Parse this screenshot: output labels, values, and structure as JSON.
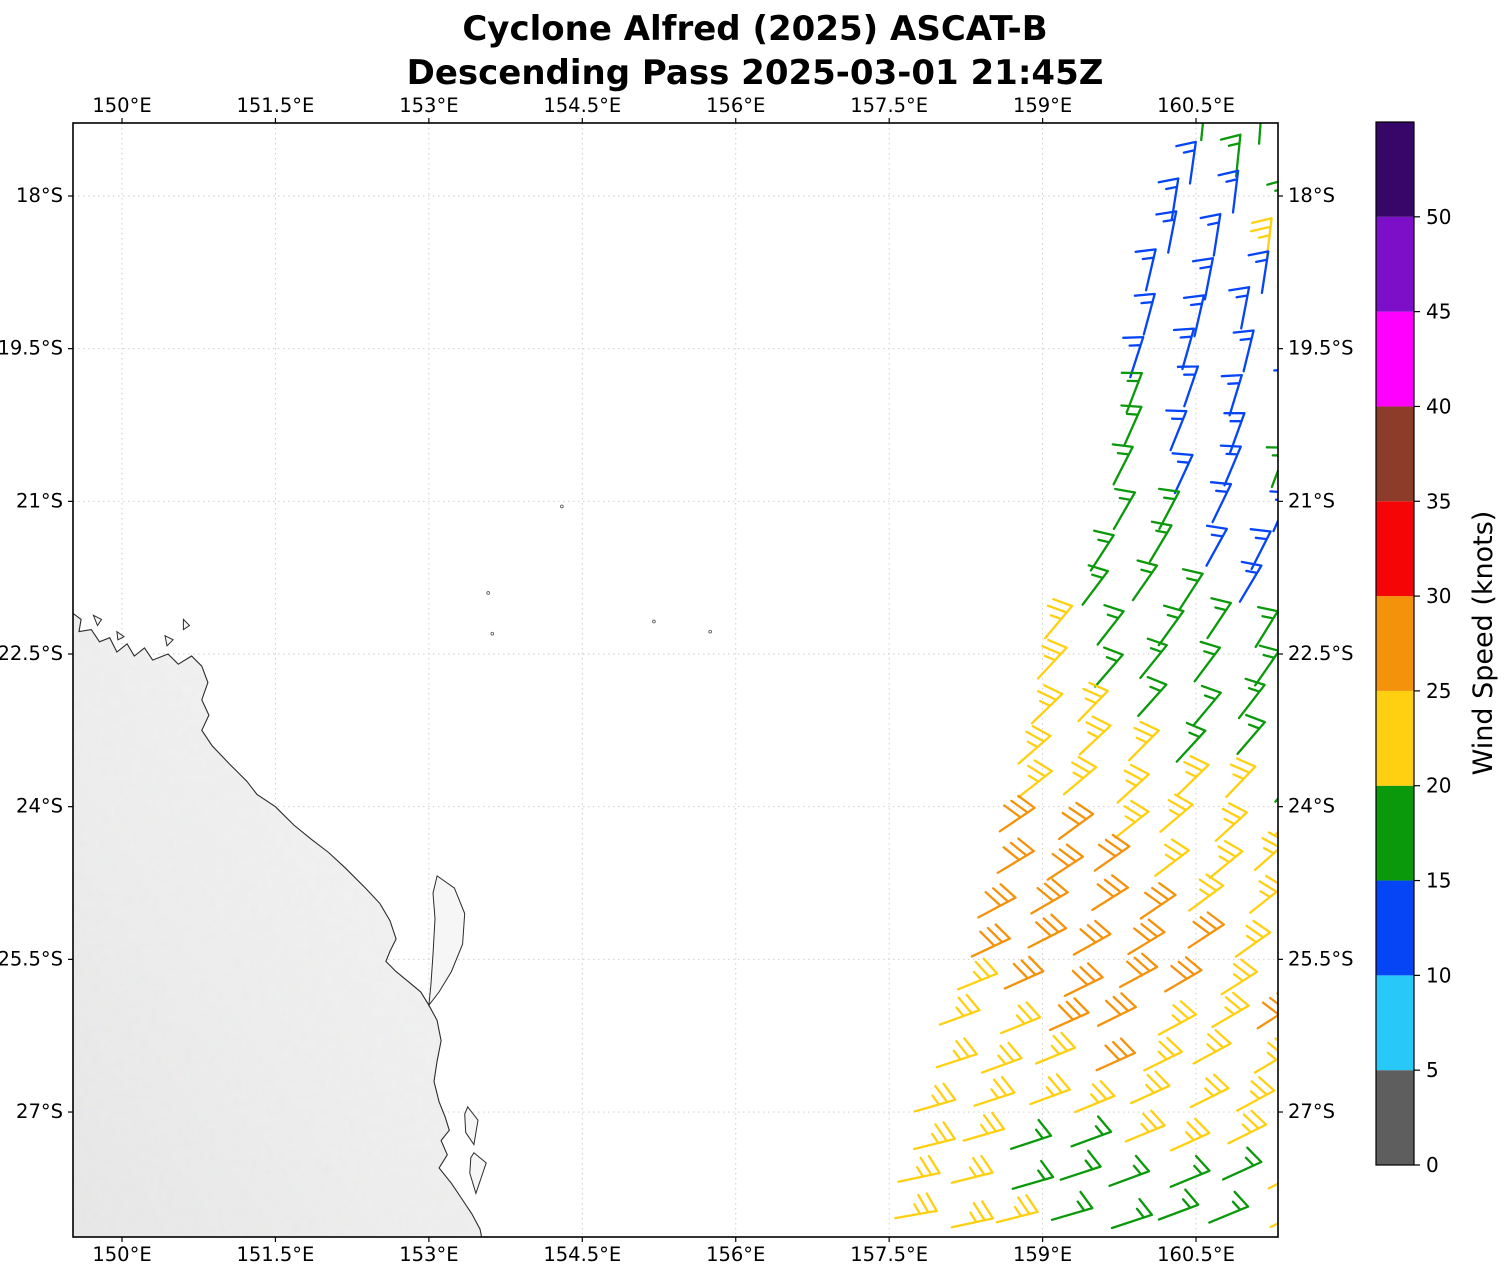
{
  "figure": {
    "title_line1": "Cyclone Alfred (2025) ASCAT-B",
    "title_line2": "Descending Pass 2025-03-01 21:45Z"
  },
  "chart_data": {
    "type": "wind-barb-map",
    "title": "Cyclone Alfred (2025) ASCAT-B — Descending Pass 2025-03-01 21:45Z",
    "storm_name": "Cyclone Alfred",
    "season": "2025",
    "satellite": "ASCAT-B",
    "pass_type": "Descending Pass",
    "datetime": "2025-03-01 21:45Z",
    "grid": "dotted",
    "x_axis": {
      "tick_labels": [
        "150°E",
        "151.5°E",
        "153°E",
        "154.5°E",
        "156°E",
        "157.5°E",
        "159°E",
        "160.5°E"
      ],
      "tick_lons": [
        150,
        151.5,
        153,
        154.5,
        156,
        157.5,
        159,
        160.5
      ],
      "lon_range": [
        149.52,
        161.3
      ]
    },
    "y_axis": {
      "tick_labels": [
        "18°S",
        "19.5°S",
        "21°S",
        "22.5°S",
        "24°S",
        "25.5°S",
        "27°S"
      ],
      "tick_lats": [
        -18,
        -19.5,
        -21,
        -22.5,
        -24,
        -25.5,
        -27
      ],
      "lat_range": [
        -28.23,
        -17.28
      ]
    },
    "colorbar": {
      "label": "Wind Speed (knots)",
      "tick_values": [
        0,
        5,
        10,
        15,
        20,
        25,
        30,
        35,
        40,
        45,
        50
      ],
      "max_value": 55,
      "levels": [
        {
          "from": 0,
          "to": 5,
          "color": "#5e5e5e"
        },
        {
          "from": 5,
          "to": 10,
          "color": "#28c8f8"
        },
        {
          "from": 10,
          "to": 15,
          "color": "#0545f5"
        },
        {
          "from": 15,
          "to": 20,
          "color": "#0a990a"
        },
        {
          "from": 20,
          "to": 25,
          "color": "#ffd012"
        },
        {
          "from": 25,
          "to": 30,
          "color": "#f5920b"
        },
        {
          "from": 30,
          "to": 35,
          "color": "#f50505"
        },
        {
          "from": 35,
          "to": 40,
          "color": "#8e3c2a"
        },
        {
          "from": 40,
          "to": 45,
          "color": "#ff00ff"
        },
        {
          "from": 45,
          "to": 50,
          "color": "#7e0fc8"
        },
        {
          "from": 50,
          "to": 55,
          "color": "#360668"
        }
      ]
    },
    "wind_barbs": {
      "description": "Satellite swath of 10-m wind barbs east of the Queensland coast; staff angle in deg CCW from east points toward feather end; barbs flipped for Southern Hemisphere.",
      "class_speeds_knots": {
        "b": 13,
        "g": 17,
        "y": 23,
        "o": 28
      },
      "dlon": 0.52,
      "twist_deg_per_lon": 4,
      "rows": [
        {
          "lat": -17.45,
          "lon0": 160.55,
          "speeds": "ggg",
          "staff_deg": 84
        },
        {
          "lat": -17.83,
          "lon0": 160.42,
          "speeds": "bggg",
          "staff_deg": 82
        },
        {
          "lat": -18.21,
          "lon0": 160.3,
          "speeds": "bbgg",
          "staff_deg": 81
        },
        {
          "lat": -18.59,
          "lon0": 160.18,
          "speeds": "bbyg",
          "staff_deg": 79
        },
        {
          "lat": -18.97,
          "lon0": 160.06,
          "speeds": "bbbg",
          "staff_deg": 77
        },
        {
          "lat": -19.35,
          "lon0": 159.95,
          "speeds": "bbbg",
          "staff_deg": 75
        },
        {
          "lat": -19.73,
          "lon0": 159.88,
          "speeds": "bbbgg",
          "staff_deg": 72
        },
        {
          "lat": -20.11,
          "lon0": 159.82,
          "speeds": "gbbbg",
          "staff_deg": 69
        },
        {
          "lat": -20.49,
          "lon0": 159.78,
          "speeds": "gbbbg",
          "staff_deg": 66
        },
        {
          "lat": -20.87,
          "lon0": 159.73,
          "speeds": "gbbgg",
          "staff_deg": 63
        },
        {
          "lat": -21.25,
          "lon0": 159.65,
          "speeds": "ggbbgg",
          "staff_deg": 60
        },
        {
          "lat": -21.63,
          "lon0": 159.52,
          "speeds": "ggbbgg",
          "staff_deg": 57
        },
        {
          "lat": -22.01,
          "lon0": 159.35,
          "speeds": "gggbgg",
          "staff_deg": 53
        },
        {
          "lat": -22.39,
          "lon0": 159.05,
          "speeds": "ygggggg",
          "staff_deg": 50
        },
        {
          "lat": -22.77,
          "lon0": 158.95,
          "speeds": "ygggggg",
          "staff_deg": 47
        },
        {
          "lat": -23.15,
          "lon0": 158.88,
          "speeds": "yygggggg",
          "staff_deg": 44
        },
        {
          "lat": -23.53,
          "lon0": 158.8,
          "speeds": "yyyggggg",
          "staff_deg": 41
        },
        {
          "lat": -23.91,
          "lon0": 158.72,
          "speeds": "yyyyyggg",
          "staff_deg": 38
        },
        {
          "lat": -24.29,
          "lon0": 158.63,
          "speeds": "ooyyyyyy",
          "staff_deg": 34
        },
        {
          "lat": -24.67,
          "lon0": 158.52,
          "speeds": "oooyyyyy",
          "staff_deg": 31
        },
        {
          "lat": -25.05,
          "lon0": 158.4,
          "speeds": "ooooyyyy",
          "staff_deg": 28
        },
        {
          "lat": -25.43,
          "lon0": 158.3,
          "speeds": "oooooyyy",
          "staff_deg": 25
        },
        {
          "lat": -25.81,
          "lon0": 158.16,
          "speeds": "yooooyyy",
          "staff_deg": 22
        },
        {
          "lat": -26.19,
          "lon0": 158.03,
          "speeds": "yyooyyoy",
          "staff_deg": 20
        },
        {
          "lat": -26.57,
          "lon0": 157.92,
          "speeds": "yyyoyyyy",
          "staff_deg": 18
        },
        {
          "lat": -26.95,
          "lon0": 157.8,
          "speeds": "yyyyyyyy",
          "staff_deg": 16
        },
        {
          "lat": -27.33,
          "lon0": 157.7,
          "speeds": "yyggyyyy",
          "staff_deg": 14
        },
        {
          "lat": -27.71,
          "lon0": 157.62,
          "speeds": "yygggggy",
          "staff_deg": 12
        },
        {
          "lat": -28.09,
          "lon0": 157.55,
          "speeds": "yyyggggy",
          "staff_deg": 10
        }
      ]
    },
    "geography": {
      "region": "Queensland, Australia coast and Coral Sea",
      "mainland_coast": [
        [
          149.52,
          -22.1
        ],
        [
          149.6,
          -22.16
        ],
        [
          149.58,
          -22.28
        ],
        [
          149.7,
          -22.26
        ],
        [
          149.78,
          -22.38
        ],
        [
          149.88,
          -22.34
        ],
        [
          149.95,
          -22.48
        ],
        [
          150.05,
          -22.4
        ],
        [
          150.12,
          -22.52
        ],
        [
          150.22,
          -22.44
        ],
        [
          150.3,
          -22.56
        ],
        [
          150.45,
          -22.5
        ],
        [
          150.55,
          -22.6
        ],
        [
          150.68,
          -22.52
        ],
        [
          150.78,
          -22.62
        ],
        [
          150.84,
          -22.78
        ],
        [
          150.78,
          -22.95
        ],
        [
          150.85,
          -23.1
        ],
        [
          150.78,
          -23.25
        ],
        [
          150.88,
          -23.4
        ],
        [
          151.05,
          -23.58
        ],
        [
          151.22,
          -23.75
        ],
        [
          151.32,
          -23.88
        ],
        [
          151.5,
          -24.0
        ],
        [
          151.68,
          -24.18
        ],
        [
          151.85,
          -24.32
        ],
        [
          152.02,
          -24.45
        ],
        [
          152.18,
          -24.6
        ],
        [
          152.38,
          -24.8
        ],
        [
          152.52,
          -24.95
        ],
        [
          152.62,
          -25.12
        ],
        [
          152.68,
          -25.3
        ],
        [
          152.62,
          -25.42
        ],
        [
          152.58,
          -25.52
        ],
        [
          152.68,
          -25.62
        ],
        [
          152.8,
          -25.72
        ],
        [
          152.92,
          -25.82
        ],
        [
          153.0,
          -25.95
        ],
        [
          153.08,
          -26.1
        ],
        [
          153.12,
          -26.3
        ],
        [
          153.08,
          -26.5
        ],
        [
          153.05,
          -26.7
        ],
        [
          153.1,
          -26.9
        ],
        [
          153.16,
          -27.05
        ],
        [
          153.2,
          -27.18
        ],
        [
          153.12,
          -27.28
        ],
        [
          153.18,
          -27.42
        ],
        [
          153.1,
          -27.55
        ],
        [
          153.22,
          -27.7
        ],
        [
          153.32,
          -27.85
        ],
        [
          153.42,
          -28.0
        ],
        [
          153.5,
          -28.15
        ],
        [
          153.52,
          -28.25
        ],
        [
          149.52,
          -28.25
        ]
      ],
      "islands": [
        [
          [
            153.08,
            -24.68
          ],
          [
            153.25,
            -24.8
          ],
          [
            153.35,
            -25.05
          ],
          [
            153.33,
            -25.35
          ],
          [
            153.22,
            -25.62
          ],
          [
            153.1,
            -25.82
          ],
          [
            153.0,
            -25.95
          ],
          [
            153.02,
            -25.75
          ],
          [
            153.04,
            -25.45
          ],
          [
            153.06,
            -25.1
          ],
          [
            153.04,
            -24.85
          ]
        ],
        [
          [
            153.38,
            -26.95
          ],
          [
            153.48,
            -27.08
          ],
          [
            153.44,
            -27.32
          ],
          [
            153.36,
            -27.2
          ],
          [
            153.35,
            -27.02
          ]
        ],
        [
          [
            153.44,
            -27.4
          ],
          [
            153.56,
            -27.5
          ],
          [
            153.46,
            -27.8
          ],
          [
            153.4,
            -27.6
          ],
          [
            153.41,
            -27.45
          ]
        ],
        [
          [
            149.72,
            -22.12
          ],
          [
            149.8,
            -22.16
          ],
          [
            149.76,
            -22.22
          ]
        ],
        [
          [
            149.95,
            -22.28
          ],
          [
            150.02,
            -22.33
          ],
          [
            149.96,
            -22.36
          ]
        ],
        [
          [
            150.42,
            -22.32
          ],
          [
            150.5,
            -22.36
          ],
          [
            150.44,
            -22.42
          ]
        ],
        [
          [
            150.6,
            -22.16
          ],
          [
            150.66,
            -22.22
          ],
          [
            150.6,
            -22.26
          ]
        ]
      ],
      "reef_dots": [
        [
          153.58,
          -21.9
        ],
        [
          154.3,
          -21.05
        ],
        [
          155.2,
          -22.18
        ],
        [
          155.75,
          -22.28
        ],
        [
          153.62,
          -22.3
        ]
      ]
    }
  }
}
